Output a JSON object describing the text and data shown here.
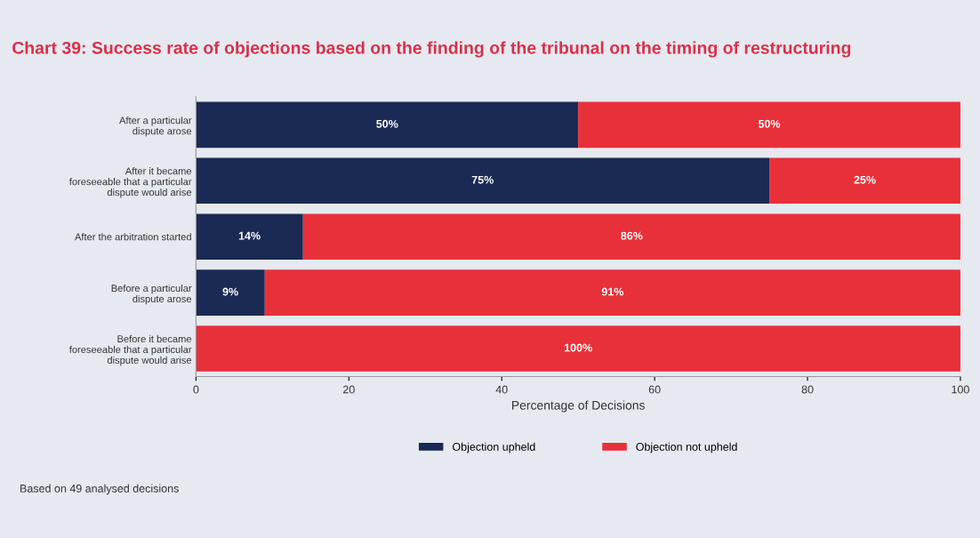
{
  "chart_data": {
    "type": "bar",
    "orientation": "horizontal",
    "stacked": true,
    "title": "Chart 39: Success rate of objections based on the finding of the tribunal on the timing of restructuring",
    "categories": [
      "After a particular\ndispute arose",
      "After it became\nforeseeable that a particular\ndispute would arise",
      "After the arbitration started",
      "Before a particular\ndispute arose",
      "Before it became\nforeseeable that a particular\ndispute would arise"
    ],
    "series": [
      {
        "name": "Objection upheld",
        "color": "#1b2a55",
        "values": [
          50,
          75,
          14,
          9,
          0
        ],
        "value_labels": [
          "50%",
          "75%",
          "14%",
          "9%",
          null
        ]
      },
      {
        "name": "Objection not upheld",
        "color": "#e8303a",
        "values": [
          50,
          25,
          86,
          91,
          100
        ],
        "value_labels": [
          "50%",
          "25%",
          "86%",
          "91%",
          "100%"
        ]
      }
    ],
    "xlabel": "Percentage of Decisions",
    "xlim": [
      0,
      100
    ],
    "xticks": [
      0,
      20,
      40,
      60,
      80,
      100
    ],
    "grid": false,
    "legend": "bottom",
    "annotations": [
      "Based on 49 analysed decisions"
    ]
  }
}
